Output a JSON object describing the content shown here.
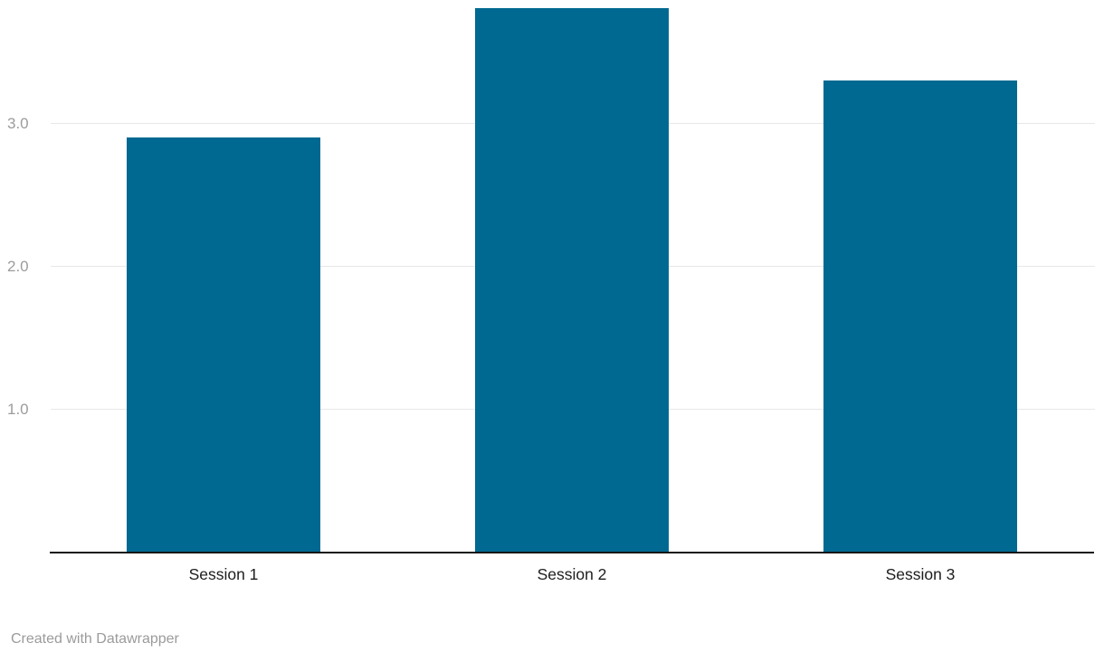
{
  "chart_data": {
    "type": "bar",
    "categories": [
      "Session 1",
      "Session 2",
      "Session 3"
    ],
    "values": [
      2.9,
      3.8,
      3.3
    ],
    "title": "",
    "xlabel": "",
    "ylabel": "",
    "ylim": [
      0,
      3.86
    ],
    "yticks": [
      1.0,
      2.0,
      3.0
    ],
    "ytick_labels": [
      "1.0",
      "2.0",
      "3.0"
    ],
    "grid": true,
    "legend": "none",
    "bar_color": "#006991"
  },
  "footer": {
    "attribution": "Created with Datawrapper"
  },
  "colors": {
    "bar": "#006991",
    "gridline": "#e8e8e8",
    "axis_line": "#161616",
    "tick_label": "#9c9c9c",
    "category_label": "#1d1d1d",
    "footer_text": "#9b9b9b",
    "background": "#ffffff"
  }
}
